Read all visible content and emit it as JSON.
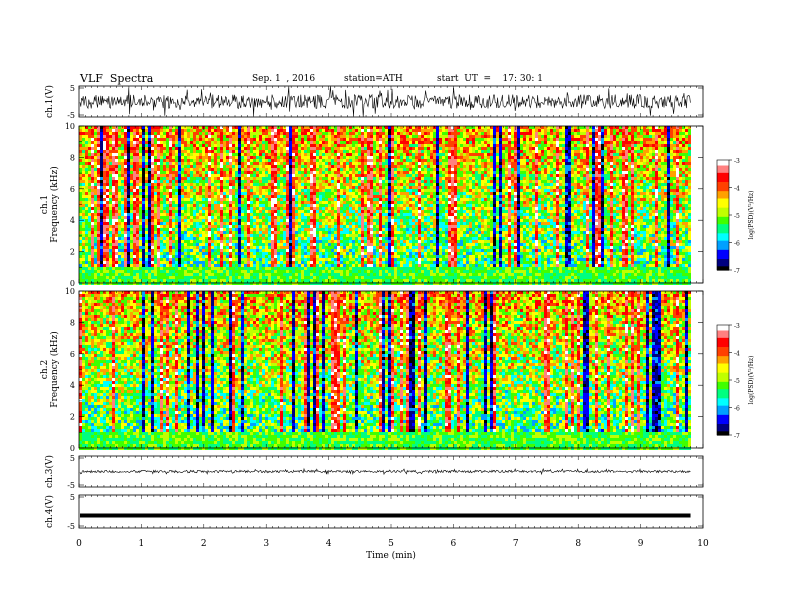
{
  "header": {
    "title": "VLF  Spectra",
    "date": "Sep. 1  , 2016",
    "station": "station=ATH",
    "start": "start  UT  =    17: 30: 1"
  },
  "chart_data": [
    {
      "type": "line",
      "panel": "ch1-waveform",
      "ylabel": "ch.1(V)",
      "ylim": [
        -5,
        5
      ],
      "yticks": [
        "5",
        "-5"
      ],
      "xlim": [
        0,
        10
      ],
      "data_end_min": 9.8
    },
    {
      "type": "heatmap",
      "panel": "ch1-spectrogram",
      "ylabel": "ch.1\nFrequency  (kHz)",
      "ylim": [
        0,
        10
      ],
      "yticks": [
        "0",
        "2",
        "4",
        "6",
        "8",
        "10"
      ],
      "xlim": [
        0,
        10
      ],
      "colorbar": {
        "label": "log(PSD)(V²/Hz)",
        "ticks": [
          "-3",
          "-4",
          "-5",
          "-6",
          "-7"
        ],
        "range": [
          -7,
          -3
        ]
      }
    },
    {
      "type": "heatmap",
      "panel": "ch2-spectrogram",
      "ylabel": "ch.2\nFrequency  (kHz)",
      "ylim": [
        0,
        10
      ],
      "yticks": [
        "0",
        "2",
        "4",
        "6",
        "8",
        "10"
      ],
      "xlim": [
        0,
        10
      ],
      "colorbar": {
        "label": "log(PSD)(V²/Hz)",
        "ticks": [
          "-3",
          "-4",
          "-5",
          "-6",
          "-7"
        ],
        "range": [
          -7,
          -3
        ]
      }
    },
    {
      "type": "line",
      "panel": "ch3-waveform",
      "ylabel": "ch.3(V)",
      "ylim": [
        -5,
        5
      ],
      "yticks": [
        "5",
        "-5"
      ],
      "xlim": [
        0,
        10
      ]
    },
    {
      "type": "line",
      "panel": "ch4-waveform",
      "ylabel": "ch.4(V)",
      "ylim": [
        -5,
        5
      ],
      "yticks": [
        "5",
        "-5"
      ],
      "xlim": [
        0,
        10
      ]
    }
  ],
  "xaxis": {
    "label": "Time  (min)",
    "ticks": [
      "0",
      "1",
      "2",
      "3",
      "4",
      "5",
      "6",
      "7",
      "8",
      "9",
      "10"
    ]
  },
  "colormap": [
    "#000000",
    "#000080",
    "#0000ff",
    "#00a0ff",
    "#00ffff",
    "#00ff80",
    "#40ff00",
    "#c0ff00",
    "#ffff00",
    "#ffa000",
    "#ff4000",
    "#ff0000",
    "#ff8080",
    "#ffffff"
  ]
}
